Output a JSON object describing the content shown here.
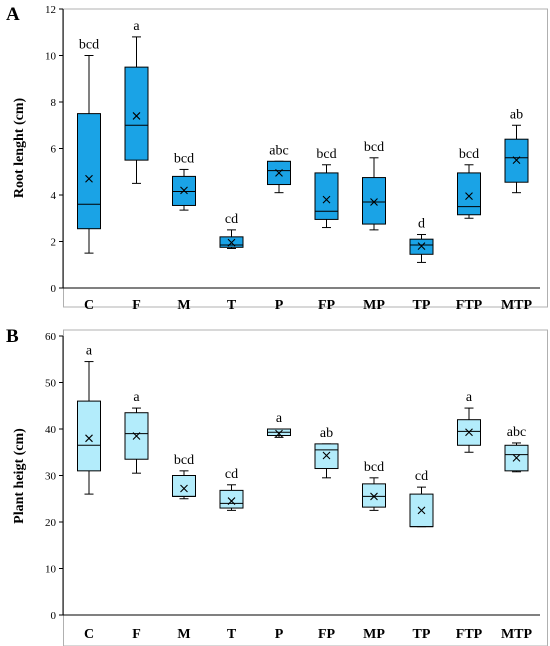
{
  "chart_data": [
    {
      "panel": "A",
      "type": "box",
      "ylabel": "Root lenght (cm)",
      "ylim": [
        0,
        12
      ],
      "yticks": [
        0,
        2,
        4,
        6,
        8,
        10,
        12
      ],
      "categories": [
        "C",
        "F",
        "M",
        "T",
        "P",
        "FP",
        "MP",
        "TP",
        "FTP",
        "MTP"
      ],
      "box_color": "#1aa3e6",
      "boxes": [
        {
          "min": 1.5,
          "q1": 2.55,
          "median": 3.6,
          "q3": 7.5,
          "max": 10.0,
          "mean": 4.7,
          "letter": "bcd"
        },
        {
          "min": 4.5,
          "q1": 5.5,
          "median": 7.0,
          "q3": 9.5,
          "max": 10.8,
          "mean": 7.4,
          "letter": "a"
        },
        {
          "min": 3.35,
          "q1": 3.55,
          "median": 4.15,
          "q3": 4.8,
          "max": 5.1,
          "mean": 4.2,
          "letter": "bcd"
        },
        {
          "min": 1.7,
          "q1": 1.75,
          "median": 1.85,
          "q3": 2.2,
          "max": 2.5,
          "mean": 1.95,
          "letter": "cd"
        },
        {
          "min": 4.1,
          "q1": 4.45,
          "median": 5.05,
          "q3": 5.45,
          "max": 5.45,
          "mean": 4.95,
          "letter": "abc"
        },
        {
          "min": 2.6,
          "q1": 2.95,
          "median": 3.3,
          "q3": 4.95,
          "max": 5.3,
          "mean": 3.8,
          "letter": "bcd"
        },
        {
          "min": 2.5,
          "q1": 2.75,
          "median": 3.7,
          "q3": 4.75,
          "max": 5.6,
          "mean": 3.7,
          "letter": "bcd"
        },
        {
          "min": 1.1,
          "q1": 1.45,
          "median": 1.85,
          "q3": 2.1,
          "max": 2.3,
          "mean": 1.8,
          "letter": "d"
        },
        {
          "min": 3.0,
          "q1": 3.15,
          "median": 3.5,
          "q3": 4.95,
          "max": 5.3,
          "mean": 3.95,
          "letter": "bcd"
        },
        {
          "min": 4.1,
          "q1": 4.55,
          "median": 5.6,
          "q3": 6.4,
          "max": 7.0,
          "mean": 5.5,
          "letter": "ab"
        }
      ]
    },
    {
      "panel": "B",
      "type": "box",
      "ylabel": "Plant heigt (cm)",
      "ylim": [
        0,
        60
      ],
      "yticks": [
        0,
        10,
        20,
        30,
        40,
        50,
        60
      ],
      "categories": [
        "C",
        "F",
        "M",
        "T",
        "P",
        "FP",
        "MP",
        "TP",
        "FTP",
        "MTP"
      ],
      "box_color": "#b3ecfb",
      "boxes": [
        {
          "min": 26.0,
          "q1": 31.0,
          "median": 36.5,
          "q3": 46.0,
          "max": 54.5,
          "mean": 38.0,
          "letter": "a"
        },
        {
          "min": 30.5,
          "q1": 33.5,
          "median": 39.0,
          "q3": 43.5,
          "max": 44.5,
          "mean": 38.5,
          "letter": "a"
        },
        {
          "min": 25.0,
          "q1": 25.5,
          "median": 25.5,
          "q3": 30.0,
          "max": 31.0,
          "mean": 27.2,
          "letter": "bcd"
        },
        {
          "min": 22.5,
          "q1": 23.0,
          "median": 24.0,
          "q3": 26.8,
          "max": 28.0,
          "mean": 24.5,
          "letter": "cd"
        },
        {
          "min": 38.2,
          "q1": 38.6,
          "median": 39.3,
          "q3": 40.0,
          "max": 40.0,
          "mean": 39.0,
          "letter": "a"
        },
        {
          "min": 29.5,
          "q1": 31.5,
          "median": 35.5,
          "q3": 36.8,
          "max": 36.8,
          "mean": 34.3,
          "letter": "ab"
        },
        {
          "min": 22.5,
          "q1": 23.2,
          "median": 25.5,
          "q3": 28.2,
          "max": 29.5,
          "mean": 25.5,
          "letter": "bcd"
        },
        {
          "min": 19.0,
          "q1": 19.0,
          "median": 19.0,
          "q3": 26.0,
          "max": 27.5,
          "mean": 22.5,
          "letter": "cd"
        },
        {
          "min": 35.0,
          "q1": 36.5,
          "median": 39.5,
          "q3": 42.0,
          "max": 44.5,
          "mean": 39.3,
          "letter": "a"
        },
        {
          "min": 30.8,
          "q1": 31.0,
          "median": 34.5,
          "q3": 36.5,
          "max": 37.0,
          "mean": 33.8,
          "letter": "abc"
        }
      ]
    }
  ]
}
